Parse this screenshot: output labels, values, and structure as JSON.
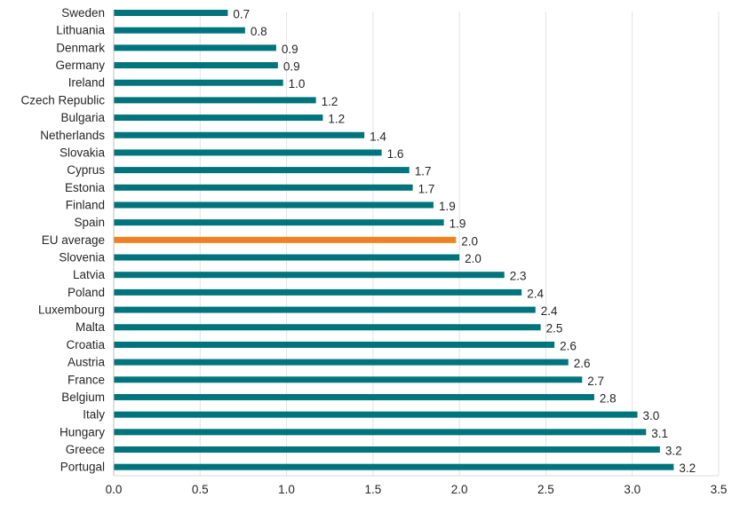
{
  "chart_data": {
    "type": "bar",
    "orientation": "horizontal",
    "title": "",
    "xlabel": "",
    "ylabel": "",
    "xlim": [
      0,
      3.5
    ],
    "x_ticks": [
      "0.0",
      "0.5",
      "1.0",
      "1.5",
      "2.0",
      "2.5",
      "3.0",
      "3.5"
    ],
    "x_tick_values": [
      0,
      0.5,
      1.0,
      1.5,
      2.0,
      2.5,
      3.0,
      3.5
    ],
    "grid": "vertical",
    "legend": "none",
    "colors": {
      "default": "#00747c",
      "highlight": "#f08122"
    },
    "categories": [
      "Sweden",
      "Lithuania",
      "Denmark",
      "Germany",
      "Ireland",
      "Czech Republic",
      "Bulgaria",
      "Netherlands",
      "Slovakia",
      "Cyprus",
      "Estonia",
      "Finland",
      "Spain",
      "EU average",
      "Slovenia",
      "Latvia",
      "Poland",
      "Luxembourg",
      "Malta",
      "Croatia",
      "Austria",
      "France",
      "Belgium",
      "Italy",
      "Hungary",
      "Greece",
      "Portugal"
    ],
    "values": [
      0.66,
      0.76,
      0.94,
      0.95,
      0.98,
      1.17,
      1.21,
      1.45,
      1.55,
      1.71,
      1.73,
      1.85,
      1.91,
      1.98,
      2.0,
      2.26,
      2.36,
      2.44,
      2.47,
      2.55,
      2.63,
      2.71,
      2.78,
      3.03,
      3.08,
      3.16,
      3.24
    ],
    "data_labels": [
      "0.7",
      "0.8",
      "0.9",
      "0.9",
      "1.0",
      "1.2",
      "1.2",
      "1.4",
      "1.6",
      "1.7",
      "1.7",
      "1.9",
      "1.9",
      "2.0",
      "2.0",
      "2.3",
      "2.4",
      "2.4",
      "2.5",
      "2.6",
      "2.6",
      "2.7",
      "2.8",
      "3.0",
      "3.1",
      "3.2",
      "3.2"
    ],
    "highlighted": [
      "EU average"
    ]
  }
}
